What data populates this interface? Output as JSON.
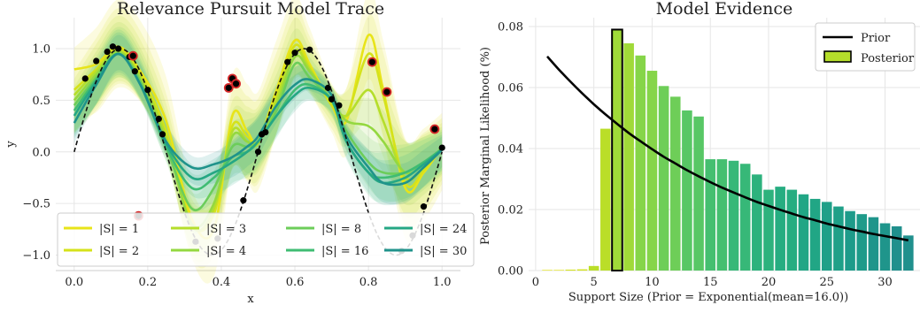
{
  "chart_data": [
    {
      "type": "line",
      "title": "Relevance Pursuit Model Trace",
      "xlabel": "x",
      "ylabel": "y",
      "xlim": [
        -0.05,
        1.05
      ],
      "ylim": [
        -1.15,
        1.3
      ],
      "xticks": [
        "0.0",
        "0.2",
        "0.4",
        "0.6",
        "0.8",
        "1.0"
      ],
      "xtick_values": [
        0.0,
        0.2,
        0.4,
        0.6,
        0.8,
        1.0
      ],
      "yticks": [
        "−1.0",
        "−0.5",
        "0.0",
        "0.5",
        "1.0"
      ],
      "ytick_values": [
        -1.0,
        -0.5,
        0.0,
        0.5,
        1.0
      ],
      "grid": true,
      "legend_position": "bottom",
      "colors": {
        "true_function": "#111111",
        "points": "#000000",
        "outlier_edge": "#d62728"
      },
      "series": [
        {
          "name": "|S| = 1",
          "color": "#e8e419",
          "points": [
            [
              0.0,
              0.8
            ],
            [
              0.06,
              0.85
            ],
            [
              0.12,
              1.02
            ],
            [
              0.18,
              0.78
            ],
            [
              0.25,
              0.3
            ],
            [
              0.32,
              -0.65
            ],
            [
              0.38,
              -0.75
            ],
            [
              0.43,
              0.35
            ],
            [
              0.47,
              0.2
            ],
            [
              0.5,
              0.1
            ],
            [
              0.55,
              0.6
            ],
            [
              0.6,
              1.08
            ],
            [
              0.64,
              0.85
            ],
            [
              0.7,
              0.45
            ],
            [
              0.74,
              0.3
            ],
            [
              0.8,
              1.13
            ],
            [
              0.84,
              0.6
            ],
            [
              0.9,
              -0.35
            ],
            [
              0.95,
              -0.2
            ],
            [
              1.0,
              0.05
            ]
          ]
        },
        {
          "name": "|S| = 2",
          "color": "#d5e21a",
          "points": [
            [
              0.0,
              0.6
            ],
            [
              0.06,
              0.8
            ],
            [
              0.12,
              1.0
            ],
            [
              0.18,
              0.75
            ],
            [
              0.25,
              0.2
            ],
            [
              0.32,
              -0.7
            ],
            [
              0.38,
              -0.6
            ],
            [
              0.43,
              0.25
            ],
            [
              0.47,
              0.15
            ],
            [
              0.5,
              0.1
            ],
            [
              0.55,
              0.55
            ],
            [
              0.6,
              1.03
            ],
            [
              0.64,
              0.82
            ],
            [
              0.7,
              0.45
            ],
            [
              0.74,
              0.35
            ],
            [
              0.8,
              0.95
            ],
            [
              0.84,
              0.55
            ],
            [
              0.9,
              -0.3
            ],
            [
              0.95,
              -0.18
            ],
            [
              1.0,
              0.05
            ]
          ]
        },
        {
          "name": "|S| = 3",
          "color": "#b5de2b",
          "points": [
            [
              0.0,
              0.55
            ],
            [
              0.06,
              0.78
            ],
            [
              0.12,
              0.98
            ],
            [
              0.18,
              0.72
            ],
            [
              0.25,
              0.15
            ],
            [
              0.32,
              -0.72
            ],
            [
              0.38,
              -0.55
            ],
            [
              0.43,
              0.2
            ],
            [
              0.47,
              0.1
            ],
            [
              0.5,
              0.08
            ],
            [
              0.55,
              0.5
            ],
            [
              0.6,
              0.98
            ],
            [
              0.64,
              0.8
            ],
            [
              0.7,
              0.48
            ],
            [
              0.74,
              0.35
            ],
            [
              0.8,
              0.6
            ],
            [
              0.84,
              0.3
            ],
            [
              0.9,
              -0.25
            ],
            [
              0.95,
              -0.15
            ],
            [
              1.0,
              0.04
            ]
          ]
        },
        {
          "name": "|S| = 4",
          "color": "#94d840",
          "points": [
            [
              0.0,
              0.5
            ],
            [
              0.06,
              0.75
            ],
            [
              0.12,
              0.97
            ],
            [
              0.18,
              0.7
            ],
            [
              0.25,
              0.1
            ],
            [
              0.32,
              -0.7
            ],
            [
              0.38,
              -0.5
            ],
            [
              0.43,
              0.15
            ],
            [
              0.47,
              0.1
            ],
            [
              0.5,
              0.1
            ],
            [
              0.55,
              0.45
            ],
            [
              0.6,
              0.92
            ],
            [
              0.64,
              0.78
            ],
            [
              0.7,
              0.5
            ],
            [
              0.74,
              0.3
            ],
            [
              0.8,
              0.25
            ],
            [
              0.84,
              0.1
            ],
            [
              0.9,
              -0.2
            ],
            [
              0.95,
              -0.12
            ],
            [
              1.0,
              0.04
            ]
          ]
        },
        {
          "name": "|S| = 8",
          "color": "#6ccd5a",
          "points": [
            [
              0.0,
              0.45
            ],
            [
              0.06,
              0.72
            ],
            [
              0.12,
              0.95
            ],
            [
              0.18,
              0.68
            ],
            [
              0.25,
              0.05
            ],
            [
              0.32,
              -0.55
            ],
            [
              0.38,
              -0.35
            ],
            [
              0.43,
              0.05
            ],
            [
              0.47,
              0.05
            ],
            [
              0.5,
              0.1
            ],
            [
              0.55,
              0.4
            ],
            [
              0.6,
              0.85
            ],
            [
              0.64,
              0.72
            ],
            [
              0.7,
              0.5
            ],
            [
              0.74,
              0.2
            ],
            [
              0.8,
              -0.1
            ],
            [
              0.84,
              -0.2
            ],
            [
              0.9,
              -0.2
            ],
            [
              0.95,
              -0.1
            ],
            [
              1.0,
              0.03
            ]
          ]
        },
        {
          "name": "|S| = 16",
          "color": "#3fbc73",
          "points": [
            [
              0.0,
              0.4
            ],
            [
              0.06,
              0.7
            ],
            [
              0.12,
              0.95
            ],
            [
              0.18,
              0.65
            ],
            [
              0.25,
              0.05
            ],
            [
              0.32,
              -0.35
            ],
            [
              0.38,
              -0.25
            ],
            [
              0.43,
              -0.05
            ],
            [
              0.47,
              0.0
            ],
            [
              0.5,
              0.1
            ],
            [
              0.55,
              0.35
            ],
            [
              0.6,
              0.6
            ],
            [
              0.64,
              0.65
            ],
            [
              0.7,
              0.5
            ],
            [
              0.74,
              0.1
            ],
            [
              0.8,
              -0.2
            ],
            [
              0.84,
              -0.25
            ],
            [
              0.9,
              -0.2
            ],
            [
              0.95,
              -0.1
            ],
            [
              1.0,
              0.03
            ]
          ]
        },
        {
          "name": "|S| = 24",
          "color": "#25a784",
          "points": [
            [
              0.0,
              0.35
            ],
            [
              0.06,
              0.68
            ],
            [
              0.12,
              0.95
            ],
            [
              0.18,
              0.65
            ],
            [
              0.25,
              0.08
            ],
            [
              0.32,
              -0.25
            ],
            [
              0.38,
              -0.2
            ],
            [
              0.43,
              -0.1
            ],
            [
              0.47,
              0.0
            ],
            [
              0.5,
              0.1
            ],
            [
              0.55,
              0.35
            ],
            [
              0.6,
              0.55
            ],
            [
              0.64,
              0.62
            ],
            [
              0.7,
              0.5
            ],
            [
              0.74,
              0.1
            ],
            [
              0.8,
              -0.2
            ],
            [
              0.84,
              -0.3
            ],
            [
              0.9,
              -0.25
            ],
            [
              0.95,
              -0.12
            ],
            [
              1.0,
              0.02
            ]
          ]
        },
        {
          "name": "|S| = 30",
          "color": "#1f938b",
          "points": [
            [
              0.0,
              0.28
            ],
            [
              0.06,
              0.65
            ],
            [
              0.12,
              0.95
            ],
            [
              0.18,
              0.65
            ],
            [
              0.25,
              0.1
            ],
            [
              0.32,
              -0.15
            ],
            [
              0.38,
              -0.12
            ],
            [
              0.43,
              -0.05
            ],
            [
              0.47,
              0.05
            ],
            [
              0.5,
              0.15
            ],
            [
              0.55,
              0.45
            ],
            [
              0.6,
              0.65
            ],
            [
              0.64,
              0.7
            ],
            [
              0.7,
              0.55
            ],
            [
              0.74,
              0.15
            ],
            [
              0.8,
              -0.15
            ],
            [
              0.84,
              -0.3
            ],
            [
              0.9,
              -0.3
            ],
            [
              0.95,
              -0.15
            ],
            [
              1.0,
              0.02
            ]
          ]
        }
      ],
      "scatter_points": [
        [
          0.03,
          0.71
        ],
        [
          0.06,
          0.88
        ],
        [
          0.09,
          0.97
        ],
        [
          0.105,
          1.02
        ],
        [
          0.12,
          1.0
        ],
        [
          0.15,
          0.92
        ],
        [
          0.165,
          0.78
        ],
        [
          0.2,
          0.6
        ],
        [
          0.23,
          0.32
        ],
        [
          0.24,
          0.17
        ],
        [
          0.33,
          -0.87
        ],
        [
          0.39,
          -0.84
        ],
        [
          0.46,
          -0.47
        ],
        [
          0.5,
          0.0
        ],
        [
          0.51,
          0.17
        ],
        [
          0.52,
          0.19
        ],
        [
          0.58,
          0.87
        ],
        [
          0.6,
          0.96
        ],
        [
          0.64,
          0.99
        ],
        [
          0.69,
          0.62
        ],
        [
          0.7,
          0.51
        ],
        [
          0.72,
          0.45
        ],
        [
          0.89,
          -0.96
        ],
        [
          0.92,
          -0.81
        ],
        [
          0.95,
          -0.53
        ],
        [
          1.0,
          0.04
        ]
      ],
      "outlier_points": [
        [
          0.16,
          0.93
        ],
        [
          0.175,
          -0.62
        ],
        [
          0.42,
          0.62
        ],
        [
          0.43,
          0.71
        ],
        [
          0.44,
          0.66
        ],
        [
          0.81,
          0.87
        ],
        [
          0.85,
          0.58
        ],
        [
          0.98,
          0.22
        ]
      ]
    },
    {
      "type": "bar",
      "title": "Model Evidence",
      "xlabel": "Support Size (Prior = Exponential(mean=16.0))",
      "ylabel": "Posterior Marginal Likelihood (%)",
      "xlim": [
        -0.6,
        33.0
      ],
      "ylim": [
        0.0,
        0.08
      ],
      "xticks": [
        "0",
        "5",
        "10",
        "15",
        "20",
        "25",
        "30"
      ],
      "xtick_values": [
        0,
        5,
        10,
        15,
        20,
        25,
        30
      ],
      "yticks": [
        "0.00",
        "0.02",
        "0.04",
        "0.06",
        "0.08"
      ],
      "ytick_values": [
        0.0,
        0.02,
        0.04,
        0.06,
        0.08
      ],
      "grid": true,
      "legend_position": "top-right",
      "legend": [
        "Prior",
        "Posterior"
      ],
      "highlighted_category": 7,
      "categories": [
        1,
        2,
        3,
        4,
        5,
        6,
        7,
        8,
        9,
        10,
        11,
        12,
        13,
        14,
        15,
        16,
        17,
        18,
        19,
        20,
        21,
        22,
        23,
        24,
        25,
        26,
        27,
        28,
        29,
        30,
        31,
        32
      ],
      "values": [
        0.0002,
        0.0002,
        0.0003,
        0.0004,
        0.0015,
        0.0465,
        0.079,
        0.0745,
        0.0705,
        0.0655,
        0.0605,
        0.057,
        0.0525,
        0.0505,
        0.0365,
        0.0365,
        0.036,
        0.035,
        0.0315,
        0.0265,
        0.0275,
        0.0265,
        0.025,
        0.0235,
        0.0225,
        0.021,
        0.0195,
        0.0185,
        0.0175,
        0.0155,
        0.0145,
        0.0115
      ],
      "prior": {
        "name": "Prior",
        "color": "#000000",
        "x": [
          1,
          2,
          3,
          4,
          5,
          6,
          7,
          8,
          9,
          10,
          11,
          12,
          13,
          14,
          15,
          16,
          17,
          18,
          19,
          20,
          21,
          22,
          23,
          24,
          25,
          26,
          27,
          28,
          29,
          30,
          31,
          32
        ],
        "values": [
          0.0702,
          0.0659,
          0.0619,
          0.0581,
          0.0545,
          0.0512,
          0.0481,
          0.0451,
          0.0424,
          0.0398,
          0.0373,
          0.0351,
          0.0329,
          0.0309,
          0.029,
          0.0272,
          0.0256,
          0.024,
          0.0225,
          0.0212,
          0.0199,
          0.0187,
          0.0175,
          0.0165,
          0.0154,
          0.0145,
          0.0136,
          0.0128,
          0.012,
          0.0113,
          0.0106,
          0.0099
        ]
      },
      "palette": [
        "#e4e51a",
        "#d3e21b",
        "#bade28",
        "#a0da39",
        "#86d549",
        "#6ece58",
        "#58c765",
        "#45bf70",
        "#37b878",
        "#2db27d",
        "#26ad81",
        "#21a685",
        "#1fa088",
        "#1e9b8a",
        "#1f958b",
        "#20908d"
      ]
    }
  ]
}
